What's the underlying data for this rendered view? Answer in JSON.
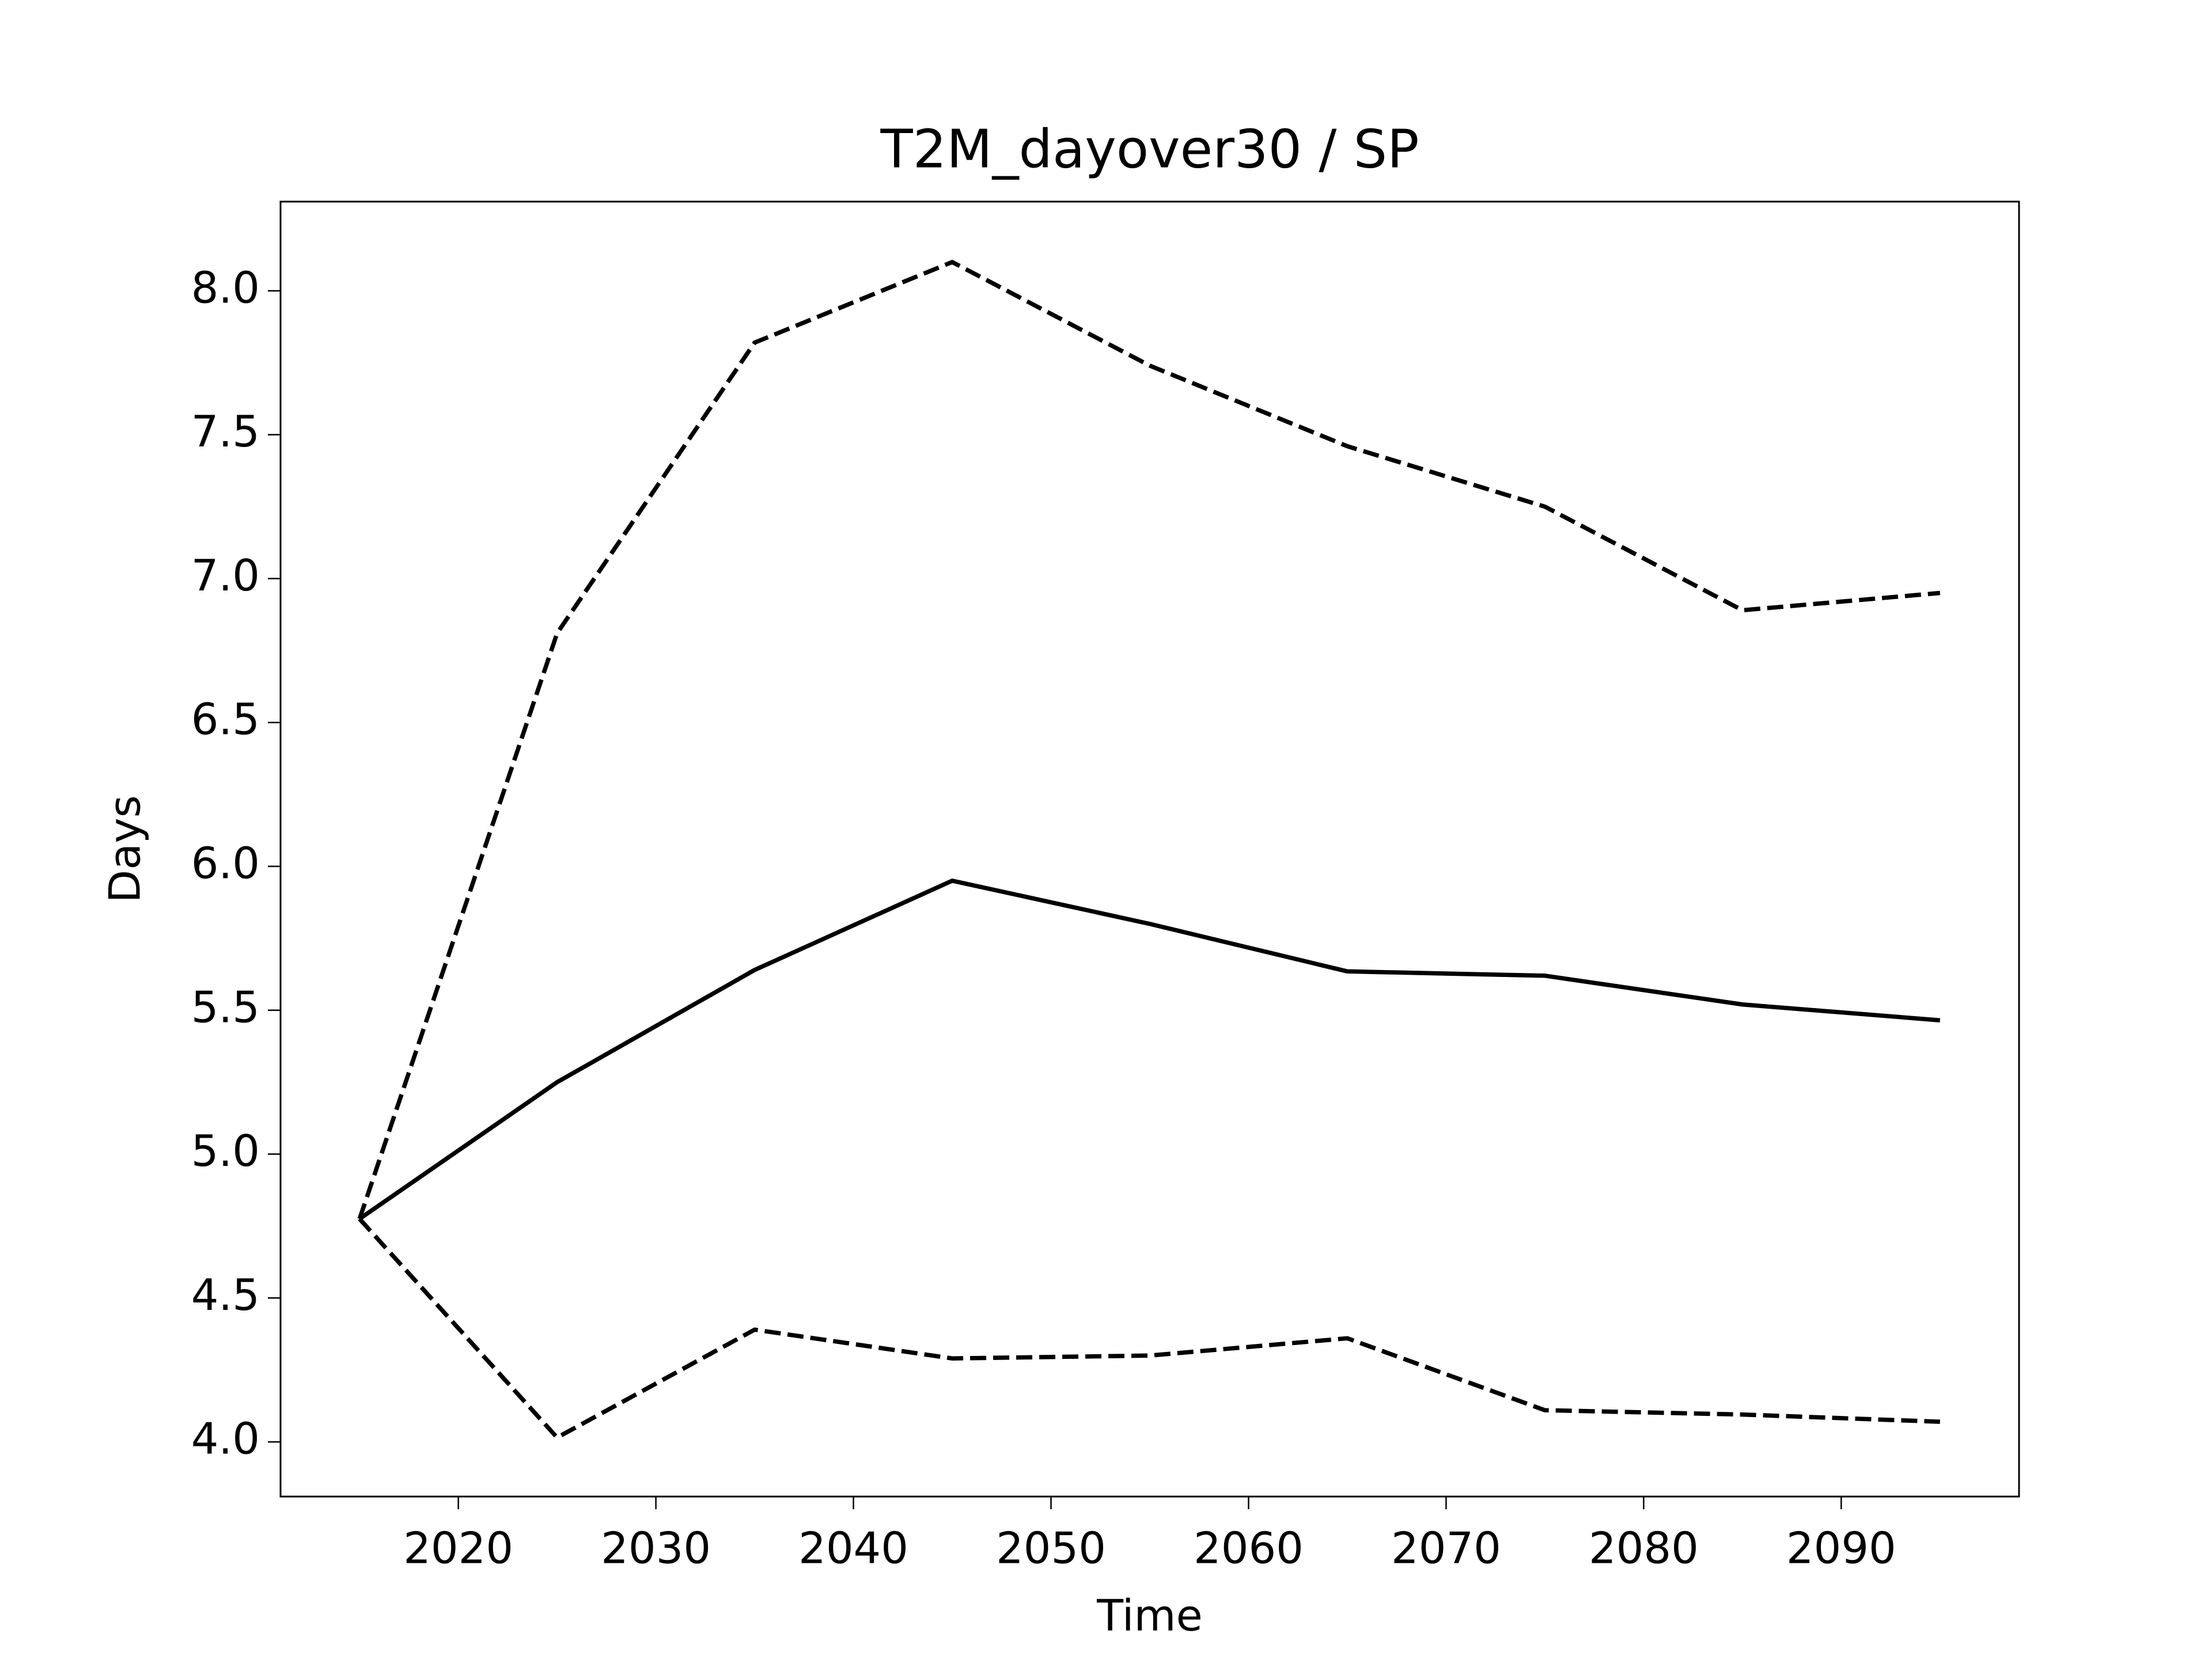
{
  "chart_data": {
    "type": "line",
    "title": "T2M_dayover30 / SP",
    "x_label": "Time",
    "y_label": "Days",
    "x": [
      2015,
      2025,
      2035,
      2045,
      2055,
      2065,
      2075,
      2085,
      2095
    ],
    "series": [
      {
        "color": "#000000",
        "style": "solid",
        "values": [
          4.775,
          5.25,
          5.64,
          5.95,
          5.8,
          5.635,
          5.62,
          5.52,
          5.465
        ]
      },
      {
        "color": "#000000",
        "style": "dashed",
        "values": [
          4.775,
          6.81,
          7.82,
          8.1,
          7.74,
          7.46,
          7.25,
          6.89,
          6.95
        ]
      },
      {
        "color": "#000000",
        "style": "dashed",
        "values": [
          4.775,
          4.015,
          4.39,
          4.29,
          4.3,
          4.36,
          4.11,
          4.095,
          4.07
        ]
      }
    ],
    "xlim": [
      2011,
      2099
    ],
    "ylim": [
      3.81,
      8.31
    ],
    "xticks": [
      2020,
      2030,
      2040,
      2050,
      2060,
      2070,
      2080,
      2090
    ],
    "yticks": [
      {
        "value": 4,
        "label": "4.0"
      },
      4.5,
      {
        "value": 5,
        "label": "5.0"
      },
      5.5,
      {
        "value": 6,
        "label": "6.0"
      },
      6.5,
      {
        "value": 7,
        "label": "7.0"
      },
      7.5,
      {
        "value": 8,
        "label": "8.0"
      }
    ],
    "grid": false
  }
}
